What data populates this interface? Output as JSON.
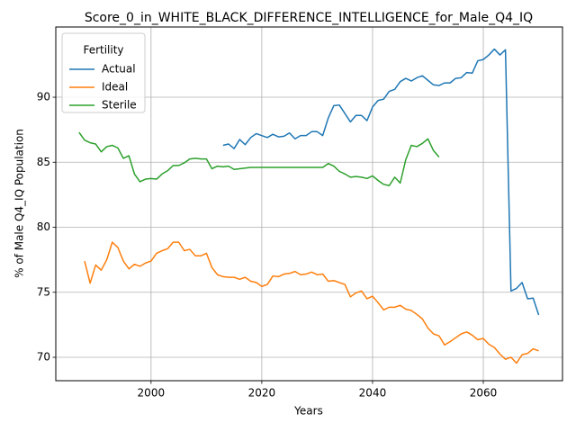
{
  "chart_data": {
    "type": "line",
    "title": "Score_0_in_WHITE_BLACK_DIFFERENCE_INTELLIGENCE_for_Male_Q4_IQ",
    "x_label": "Years",
    "y_label": "% of Male Q4_IQ Population",
    "legend_title": "Fertility",
    "legend": "upper left",
    "grid": true,
    "xlim": [
      1982.8,
      2074.3
    ],
    "ylim": [
      68.2,
      95.4
    ],
    "xticks": [
      2000,
      2020,
      2040,
      2060
    ],
    "yticks": [
      70,
      75,
      80,
      85,
      90
    ],
    "x": [
      1987,
      1988,
      1989,
      1990,
      1991,
      1992,
      1993,
      1994,
      1995,
      1996,
      1997,
      1998,
      1999,
      2000,
      2001,
      2002,
      2003,
      2004,
      2005,
      2006,
      2007,
      2008,
      2009,
      2010,
      2011,
      2012,
      2013,
      2014,
      2015,
      2016,
      2017,
      2018,
      2019,
      2020,
      2021,
      2022,
      2023,
      2024,
      2025,
      2026,
      2027,
      2028,
      2029,
      2030,
      2031,
      2032,
      2033,
      2034,
      2035,
      2036,
      2037,
      2038,
      2039,
      2040,
      2041,
      2042,
      2043,
      2044,
      2045,
      2046,
      2047,
      2048,
      2049,
      2050,
      2051,
      2052,
      2053,
      2054,
      2055,
      2056,
      2057,
      2058,
      2059,
      2060,
      2061,
      2062,
      2063,
      2064,
      2065,
      2066,
      2067,
      2068,
      2069,
      2070
    ],
    "series": [
      {
        "name": "Actual",
        "color": "#1f77b4",
        "values": [
          null,
          null,
          null,
          null,
          null,
          null,
          null,
          null,
          null,
          null,
          null,
          null,
          null,
          null,
          null,
          null,
          null,
          null,
          null,
          null,
          null,
          null,
          null,
          null,
          null,
          null,
          86.3,
          86.4,
          86.05,
          86.75,
          86.35,
          86.9,
          87.2,
          87.05,
          86.9,
          87.15,
          86.95,
          87.0,
          87.25,
          86.8,
          87.05,
          87.05,
          87.35,
          87.35,
          87.05,
          88.4,
          89.35,
          89.4,
          88.75,
          88.1,
          88.6,
          88.6,
          88.2,
          89.25,
          89.75,
          89.85,
          90.45,
          90.6,
          91.2,
          91.45,
          91.25,
          91.5,
          91.65,
          91.3,
          90.95,
          90.9,
          91.1,
          91.1,
          91.45,
          91.5,
          91.9,
          91.85,
          92.8,
          92.9,
          93.25,
          93.7,
          93.25,
          93.65,
          75.1,
          75.3,
          75.75,
          74.5,
          74.55,
          73.25
        ]
      },
      {
        "name": "Ideal",
        "color": "#ff7f0e",
        "values": [
          null,
          77.4,
          75.7,
          77.1,
          76.7,
          77.5,
          78.85,
          78.45,
          77.4,
          76.8,
          77.15,
          77.0,
          77.25,
          77.4,
          78.0,
          78.2,
          78.35,
          78.85,
          78.85,
          78.2,
          78.3,
          77.8,
          77.8,
          78.0,
          76.9,
          76.35,
          76.2,
          76.15,
          76.15,
          76.0,
          76.15,
          75.85,
          75.75,
          75.45,
          75.6,
          76.25,
          76.2,
          76.4,
          76.45,
          76.6,
          76.35,
          76.4,
          76.55,
          76.35,
          76.4,
          75.85,
          75.9,
          75.75,
          75.6,
          74.65,
          74.95,
          75.1,
          74.5,
          74.7,
          74.2,
          73.65,
          73.85,
          73.85,
          74.0,
          73.7,
          73.6,
          73.3,
          72.95,
          72.25,
          71.8,
          71.65,
          70.95,
          71.2,
          71.5,
          71.8,
          71.95,
          71.7,
          71.35,
          71.45,
          71.0,
          70.75,
          70.25,
          69.85,
          70.0,
          69.55,
          70.2,
          70.3,
          70.65,
          70.5
        ]
      },
      {
        "name": "Sterile",
        "color": "#2ca02c",
        "values": [
          87.3,
          86.7,
          86.5,
          86.4,
          85.8,
          86.2,
          86.3,
          86.1,
          85.3,
          85.5,
          84.1,
          83.5,
          83.7,
          83.75,
          83.7,
          84.1,
          84.35,
          84.75,
          84.75,
          84.95,
          85.25,
          85.3,
          85.25,
          85.25,
          84.5,
          84.7,
          84.65,
          84.7,
          84.45,
          84.5,
          84.55,
          84.6,
          84.6,
          84.6,
          84.6,
          84.6,
          84.6,
          84.6,
          84.6,
          84.6,
          84.6,
          84.6,
          84.6,
          84.6,
          84.6,
          84.9,
          84.7,
          84.3,
          84.1,
          83.85,
          83.9,
          83.85,
          83.75,
          83.95,
          83.6,
          83.3,
          83.2,
          83.85,
          83.4,
          85.2,
          86.3,
          86.2,
          86.45,
          86.8,
          85.9,
          85.4,
          null,
          null,
          null,
          null,
          null,
          null,
          null,
          null,
          null,
          null,
          null,
          null,
          null,
          null,
          null,
          null,
          null,
          null
        ]
      }
    ]
  }
}
